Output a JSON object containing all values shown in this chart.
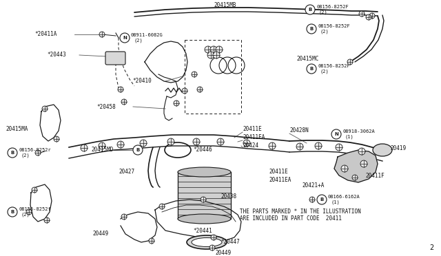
{
  "bg_color": "#ffffff",
  "line_color": "#1a1a1a",
  "label_color": "#111111",
  "footnote_line1": "THE PARTS MARKED * IN THE ILLUSTRATION",
  "footnote_line2": "ARE INCLUDED IN PART CODE  20411",
  "page_num": "2"
}
